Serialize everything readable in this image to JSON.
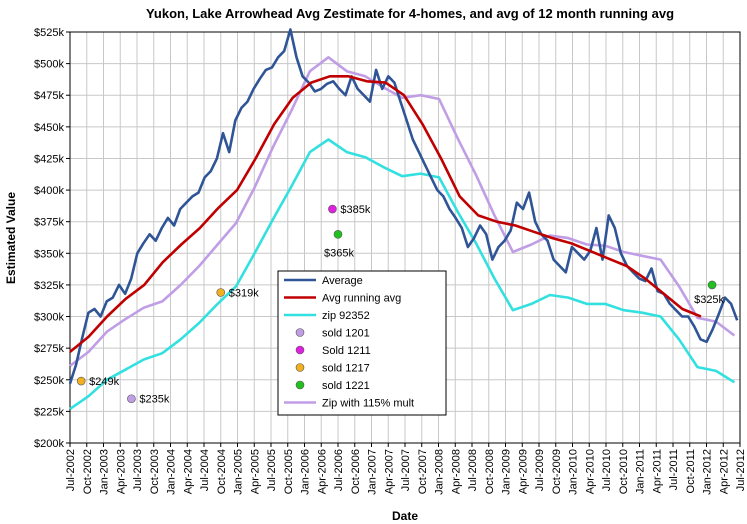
{
  "chart_data": {
    "type": "line",
    "title": "Yukon, Lake Arrowhead Avg Zestimate for 4-homes, and avg of 12 month running avg",
    "xlabel": "Date",
    "ylabel": "Estimated Value",
    "ylim": [
      200000,
      525000
    ],
    "y_ticks": [
      "$200k",
      "$225k",
      "$250k",
      "$275k",
      "$300k",
      "$325k",
      "$350k",
      "$375k",
      "$400k",
      "$425k",
      "$450k",
      "$475k",
      "$500k",
      "$525k"
    ],
    "x_tick_labels": [
      "Jul-2002",
      "Oct-2002",
      "Jan-2003",
      "Apr-2003",
      "Jul-2003",
      "Oct-2003",
      "Jan-2004",
      "Apr-2004",
      "Jul-2004",
      "Oct-2004",
      "Jan-2005",
      "Apr-2005",
      "Jul-2005",
      "Oct-2005",
      "Jan-2006",
      "Apr-2006",
      "Jul-2006",
      "Oct-2006",
      "Jan-2007",
      "Apr-2007",
      "Jul-2007",
      "Oct-2007",
      "Jan-2008",
      "Apr-2008",
      "Jul-2008",
      "Oct-2008",
      "Jan-2009",
      "Apr-2009",
      "Jul-2009",
      "Oct-2009",
      "Jan-2010",
      "Apr-2010",
      "Jul-2010",
      "Oct-2010",
      "Jan-2011",
      "Apr-2011",
      "Jul-2011",
      "Oct-2011",
      "Jan-2012",
      "Apr-2012",
      "Jul-2012"
    ],
    "grid": true,
    "legend_position": "center-bottom",
    "series": [
      {
        "name": "Average",
        "color": "#2f5597",
        "width": 2.6,
        "values": [
          [
            0,
            247000
          ],
          [
            1,
            262000
          ],
          [
            2,
            283000
          ],
          [
            3,
            303000
          ],
          [
            4,
            306000
          ],
          [
            5,
            300000
          ],
          [
            6,
            312000
          ],
          [
            7,
            315000
          ],
          [
            8,
            325000
          ],
          [
            9,
            318000
          ],
          [
            10,
            330000
          ],
          [
            11,
            350000
          ],
          [
            12,
            358000
          ],
          [
            13,
            365000
          ],
          [
            14,
            360000
          ],
          [
            15,
            370000
          ],
          [
            16,
            378000
          ],
          [
            17,
            372000
          ],
          [
            18,
            385000
          ],
          [
            19,
            390000
          ],
          [
            20,
            395000
          ],
          [
            21,
            398000
          ],
          [
            22,
            410000
          ],
          [
            23,
            415000
          ],
          [
            24,
            425000
          ],
          [
            25,
            445000
          ],
          [
            26,
            430000
          ],
          [
            27,
            455000
          ],
          [
            28,
            465000
          ],
          [
            29,
            470000
          ],
          [
            30,
            480000
          ],
          [
            31,
            488000
          ],
          [
            32,
            495000
          ],
          [
            33,
            497000
          ],
          [
            34,
            505000
          ],
          [
            35,
            510000
          ],
          [
            36,
            527000
          ],
          [
            37,
            505000
          ],
          [
            38,
            490000
          ],
          [
            39,
            485000
          ],
          [
            40,
            478000
          ],
          [
            41,
            480000
          ],
          [
            42,
            484000
          ],
          [
            43,
            486000
          ],
          [
            44,
            480000
          ],
          [
            45,
            475000
          ],
          [
            46,
            490000
          ],
          [
            47,
            480000
          ],
          [
            48,
            475000
          ],
          [
            49,
            470000
          ],
          [
            50,
            495000
          ],
          [
            51,
            480000
          ],
          [
            52,
            490000
          ],
          [
            53,
            485000
          ],
          [
            54,
            470000
          ],
          [
            55,
            455000
          ],
          [
            56,
            440000
          ],
          [
            57,
            430000
          ],
          [
            58,
            420000
          ],
          [
            59,
            410000
          ],
          [
            60,
            400000
          ],
          [
            61,
            395000
          ],
          [
            62,
            385000
          ],
          [
            63,
            378000
          ],
          [
            64,
            370000
          ],
          [
            65,
            355000
          ],
          [
            66,
            362000
          ],
          [
            67,
            372000
          ],
          [
            68,
            365000
          ],
          [
            69,
            345000
          ],
          [
            70,
            355000
          ],
          [
            71,
            360000
          ],
          [
            72,
            368000
          ],
          [
            73,
            390000
          ],
          [
            74,
            385000
          ],
          [
            75,
            398000
          ],
          [
            76,
            375000
          ],
          [
            77,
            365000
          ],
          [
            78,
            360000
          ],
          [
            79,
            345000
          ],
          [
            80,
            340000
          ],
          [
            81,
            335000
          ],
          [
            82,
            355000
          ],
          [
            83,
            350000
          ],
          [
            84,
            345000
          ],
          [
            85,
            352000
          ],
          [
            86,
            370000
          ],
          [
            87,
            345000
          ],
          [
            88,
            380000
          ],
          [
            89,
            370000
          ],
          [
            90,
            350000
          ],
          [
            91,
            340000
          ],
          [
            92,
            335000
          ],
          [
            93,
            330000
          ],
          [
            94,
            328000
          ],
          [
            95,
            338000
          ],
          [
            96,
            320000
          ],
          [
            97,
            318000
          ],
          [
            98,
            310000
          ],
          [
            99,
            305000
          ],
          [
            100,
            300000
          ],
          [
            101,
            300000
          ],
          [
            102,
            292000
          ],
          [
            103,
            282000
          ],
          [
            104,
            280000
          ],
          [
            105,
            290000
          ],
          [
            106,
            302000
          ],
          [
            107,
            315000
          ],
          [
            108,
            310000
          ],
          [
            109,
            297000
          ]
        ]
      },
      {
        "name": "Avg running avg",
        "color": "#c00000",
        "width": 2.6,
        "values": [
          [
            0,
            272000
          ],
          [
            4,
            284000
          ],
          [
            8,
            300000
          ],
          [
            12,
            314000
          ],
          [
            16,
            325000
          ],
          [
            20,
            343000
          ],
          [
            24,
            357000
          ],
          [
            28,
            370000
          ],
          [
            32,
            386000
          ],
          [
            36,
            400000
          ],
          [
            40,
            425000
          ],
          [
            44,
            452000
          ],
          [
            48,
            473000
          ],
          [
            52,
            485000
          ],
          [
            56,
            490000
          ],
          [
            60,
            490000
          ],
          [
            64,
            486000
          ],
          [
            68,
            485000
          ],
          [
            72,
            475000
          ],
          [
            76,
            452000
          ],
          [
            80,
            425000
          ],
          [
            84,
            395000
          ],
          [
            88,
            380000
          ],
          [
            92,
            375000
          ],
          [
            96,
            372000
          ],
          [
            100,
            367000
          ],
          [
            104,
            362000
          ],
          [
            108,
            358000
          ],
          [
            112,
            352000
          ],
          [
            116,
            346000
          ],
          [
            120,
            340000
          ],
          [
            124,
            330000
          ],
          [
            128,
            318000
          ],
          [
            132,
            306000
          ],
          [
            136,
            300000
          ]
        ]
      },
      {
        "name": "zip 92352",
        "color": "#33e0e0",
        "width": 2.6,
        "values": [
          [
            0,
            227000
          ],
          [
            4,
            237000
          ],
          [
            8,
            250000
          ],
          [
            12,
            258000
          ],
          [
            16,
            266000
          ],
          [
            20,
            271000
          ],
          [
            24,
            282000
          ],
          [
            28,
            295000
          ],
          [
            32,
            310000
          ],
          [
            36,
            324000
          ],
          [
            40,
            350000
          ],
          [
            44,
            377000
          ],
          [
            48,
            403000
          ],
          [
            52,
            430000
          ],
          [
            56,
            440000
          ],
          [
            60,
            430000
          ],
          [
            64,
            426000
          ],
          [
            68,
            418000
          ],
          [
            72,
            411000
          ],
          [
            76,
            413000
          ],
          [
            80,
            410000
          ],
          [
            84,
            383000
          ],
          [
            88,
            358000
          ],
          [
            92,
            330000
          ],
          [
            96,
            305000
          ],
          [
            100,
            310000
          ],
          [
            104,
            317000
          ],
          [
            108,
            315000
          ],
          [
            112,
            310000
          ],
          [
            116,
            310000
          ],
          [
            120,
            305000
          ],
          [
            124,
            303000
          ],
          [
            128,
            300000
          ],
          [
            132,
            282000
          ],
          [
            136,
            260000
          ],
          [
            140,
            257000
          ],
          [
            144,
            248000
          ]
        ]
      },
      {
        "name": "Zip with 115% mult",
        "color": "#c09ee6",
        "width": 2.6,
        "values": [
          [
            0,
            261000
          ],
          [
            4,
            272000
          ],
          [
            8,
            288000
          ],
          [
            12,
            298000
          ],
          [
            16,
            307000
          ],
          [
            20,
            312000
          ],
          [
            24,
            325000
          ],
          [
            28,
            340000
          ],
          [
            32,
            357000
          ],
          [
            36,
            374000
          ],
          [
            40,
            402000
          ],
          [
            44,
            434000
          ],
          [
            48,
            463000
          ],
          [
            52,
            494000
          ],
          [
            56,
            505000
          ],
          [
            60,
            494000
          ],
          [
            64,
            490000
          ],
          [
            68,
            481000
          ],
          [
            72,
            473000
          ],
          [
            76,
            475000
          ],
          [
            80,
            472000
          ],
          [
            84,
            441000
          ],
          [
            88,
            412000
          ],
          [
            92,
            380000
          ],
          [
            96,
            351000
          ],
          [
            100,
            357000
          ],
          [
            104,
            364000
          ],
          [
            108,
            362000
          ],
          [
            112,
            357000
          ],
          [
            116,
            356000
          ],
          [
            120,
            351000
          ],
          [
            124,
            348000
          ],
          [
            128,
            345000
          ],
          [
            132,
            324000
          ],
          [
            136,
            299000
          ],
          [
            140,
            296000
          ],
          [
            144,
            285000
          ]
        ]
      }
    ],
    "points": [
      {
        "name": "sold 1201",
        "color": "#c09ee6",
        "x": 11,
        "y": 235000,
        "label": "$235k"
      },
      {
        "name": "Sold 1211",
        "color": "#e020e0",
        "x": 47,
        "y": 385000,
        "label": "$385k"
      },
      {
        "name": "sold 1217",
        "color": "#f0b020",
        "x": 2,
        "y": 249000,
        "label": "$249k"
      },
      {
        "name": "sold 1217",
        "color": "#f0b020",
        "x": 27,
        "y": 319000,
        "label": "$319k"
      },
      {
        "name": "sold 1221",
        "color": "#20c020",
        "x": 48,
        "y": 365000,
        "label": "$365k"
      },
      {
        "name": "sold 1221",
        "color": "#20c020",
        "x": 115,
        "y": 325000,
        "label": "$325k"
      }
    ],
    "legend": [
      {
        "label": "Average",
        "kind": "line",
        "color": "#2f5597"
      },
      {
        "label": "Avg running avg",
        "kind": "line",
        "color": "#c00000"
      },
      {
        "label": "zip 92352",
        "kind": "line",
        "color": "#33e0e0"
      },
      {
        "label": "sold 1201",
        "kind": "dot",
        "color": "#c09ee6"
      },
      {
        "label": "Sold 1211",
        "kind": "dot",
        "color": "#e020e0"
      },
      {
        "label": "sold 1217",
        "kind": "dot",
        "color": "#f0b020"
      },
      {
        "label": "sold 1221",
        "kind": "dot",
        "color": "#20c020"
      },
      {
        "label": "Zip with 115% mult",
        "kind": "line",
        "color": "#c09ee6"
      }
    ]
  }
}
